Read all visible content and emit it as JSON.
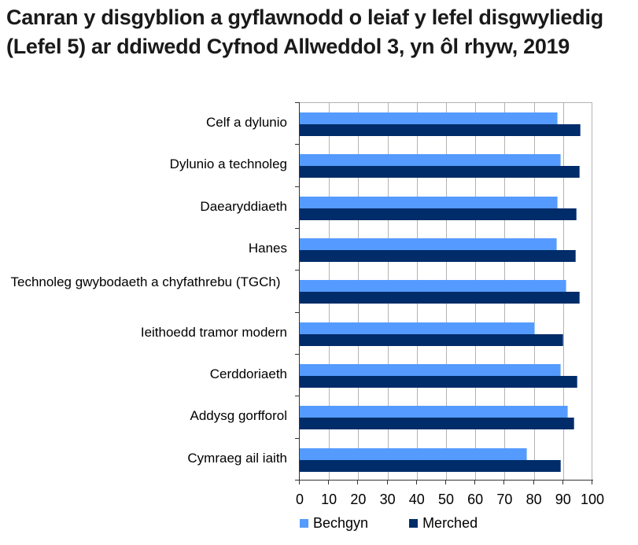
{
  "title": "Canran y disgyblion a gyflawnodd o leiaf y lefel disgwyliedig (Lefel 5) ar ddiwedd Cyfnod Allweddol 3, yn ôl rhyw, 2019",
  "colors": {
    "bechgyn": "#559bff",
    "merched": "#002c69"
  },
  "legend": {
    "bechgyn": "Bechgyn",
    "merched": "Merched"
  },
  "x_ticks": [
    "0",
    "10",
    "20",
    "30",
    "40",
    "50",
    "60",
    "70",
    "80",
    "90",
    "100"
  ],
  "chart_data": {
    "type": "bar",
    "orientation": "horizontal",
    "title": "Canran y disgyblion a gyflawnodd o leiaf y lefel disgwyliedig (Lefel 5) ar ddiwedd Cyfnod Allweddol 3, yn ôl rhyw, 2019",
    "categories": [
      "Celf a dylunio",
      "Dylunio a technoleg",
      "Daearyddiaeth",
      "Hanes",
      "Technoleg gwybodaeth a chyfathrebu (TGCh)",
      "Ieithoedd tramor modern",
      "Cerddoriaeth",
      "Addysg gorfforol",
      "Cymraeg ail iaith"
    ],
    "series": [
      {
        "name": "Bechgyn",
        "color": "#559bff",
        "values": [
          88.2,
          89.3,
          88.2,
          87.9,
          91.1,
          80.4,
          89.3,
          91.6,
          77.8
        ]
      },
      {
        "name": "Merched",
        "color": "#002c69",
        "values": [
          96.0,
          95.6,
          94.6,
          94.3,
          95.7,
          90.0,
          94.9,
          93.8,
          89.3
        ]
      }
    ],
    "xlabel": "",
    "ylabel": "",
    "xlim": [
      0,
      100
    ],
    "x_ticks": [
      0,
      10,
      20,
      30,
      40,
      50,
      60,
      70,
      80,
      90,
      100
    ],
    "grid": true,
    "legend_position": "bottom"
  }
}
